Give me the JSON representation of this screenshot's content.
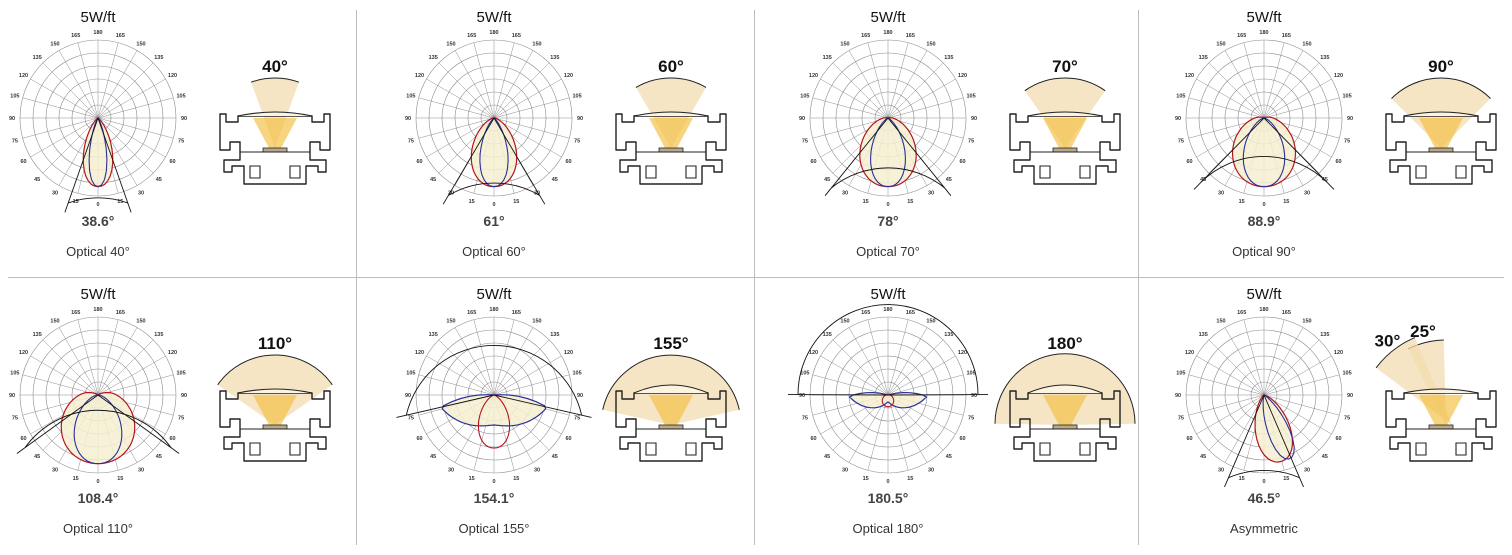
{
  "panels": [
    {
      "power": "5W/ft",
      "beam": "38.6°",
      "optic": "40°",
      "caption": "Optical 40°",
      "angle": 38.6,
      "alt": [
        25,
        44
      ],
      "optic_beams": [
        {
          "label": "40°",
          "angle": 40
        }
      ]
    },
    {
      "power": "5W/ft",
      "beam": "61°",
      "optic": "60°",
      "caption": "Optical 60°",
      "angle": 61,
      "alt": [
        40,
        60
      ],
      "optic_beams": [
        {
          "label": "60°",
          "angle": 60
        }
      ]
    },
    {
      "power": "5W/ft",
      "beam": "78°",
      "optic": "70°",
      "caption": "Optical 70°",
      "angle": 78,
      "alt": [
        50,
        72
      ],
      "optic_beams": [
        {
          "label": "70°",
          "angle": 70
        }
      ]
    },
    {
      "power": "5W/ft",
      "beam": "88.9°",
      "optic": "90°",
      "caption": "Optical 90°",
      "angle": 88.9,
      "alt": [
        60,
        84
      ],
      "optic_beams": [
        {
          "label": "90°",
          "angle": 90
        }
      ]
    },
    {
      "power": "5W/ft",
      "beam": "108.4°",
      "optic": "110°",
      "caption": "Optical 110°",
      "angle": 108.4,
      "alt": [
        70,
        100
      ],
      "optic_beams": [
        {
          "label": "110°",
          "angle": 110
        }
      ]
    },
    {
      "power": "5W/ft",
      "beam": "154.1°",
      "optic": "155°",
      "caption": "Optical 155°",
      "angle": 154.1,
      "alt": [
        85,
        150
      ],
      "optic_beams": [
        {
          "label": "155°",
          "angle": 155
        }
      ]
    },
    {
      "power": "5W/ft",
      "beam": "180.5°",
      "optic": "180°",
      "caption": "Optical 180°",
      "angle": 180.5,
      "alt": [
        90,
        178
      ],
      "optic_beams": [
        {
          "label": "180°",
          "angle": 180
        }
      ]
    },
    {
      "power": "5W/ft",
      "beam": "46.5°",
      "optic": "",
      "caption": "Asymmetric",
      "angle": 46.5,
      "alt": [
        30,
        44
      ],
      "asym": true,
      "optic_beams": [
        {
          "label": "25°",
          "angle": 25
        },
        {
          "label": "30°",
          "angle": 30
        }
      ]
    }
  ],
  "polar_ticks": [
    "0",
    "15",
    "30",
    "45",
    "60",
    "75",
    "90",
    "105",
    "120",
    "135",
    "150",
    "165",
    "180"
  ],
  "colors": {
    "curve_a": "#b4141e",
    "curve_b": "#2a2f9c",
    "fill": "#f6f0d0",
    "beam": "#f4c24a",
    "grid": "#8c8c8c",
    "profile": "#222222"
  }
}
